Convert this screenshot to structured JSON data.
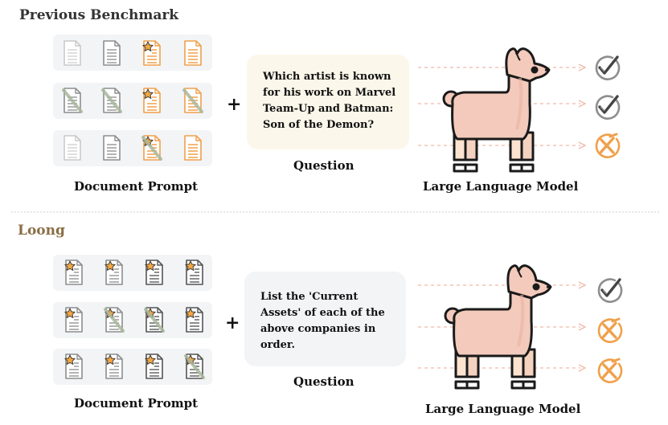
{
  "top": {
    "heading": "Previous Benchmark",
    "document_label": "Document Prompt",
    "question_label": "Question",
    "model_label": "Large Language Model",
    "question_text": "Which artist is known for his work on Marvel Team-Up and Batman: Son of the Demon?",
    "doc_rows": [
      [
        "faint-plain",
        "gray-plain",
        "orange-star",
        "orange-plain"
      ],
      [
        "gray-struck",
        "gray-struck",
        "orange-star",
        "orange-struck"
      ],
      [
        "faint-plain",
        "gray-plain",
        "orange-star-struck",
        "orange-plain"
      ]
    ],
    "results": [
      "check",
      "check",
      "cross"
    ]
  },
  "bottom": {
    "heading": "Loong",
    "document_label": "Document Prompt",
    "question_label": "Question",
    "model_label": "Large Language Model",
    "question_text": "List the 'Current Assets' of each of the above companies in order.",
    "doc_rows": [
      [
        "gray-star",
        "gray-star",
        "dark-star",
        "dark-star"
      ],
      [
        "gray-star",
        "gray-star-struck",
        "dark-star-struck",
        "dark-star"
      ],
      [
        "gray-star",
        "gray-star",
        "dark-star",
        "dark-star-struck"
      ]
    ],
    "results": [
      "check",
      "cross",
      "cross"
    ]
  },
  "colors": {
    "heading_dark": "#333333",
    "heading_loong": "#8a6d45",
    "orange": "#f0a04b",
    "check_gray": "#8e8e8e",
    "llama_body": "#f3cabb",
    "llama_leg": "#fbe3cf",
    "question_box_top": "#fbf7ea",
    "question_box_bottom": "#f3f4f6",
    "arrow": "#f0b9a8"
  }
}
